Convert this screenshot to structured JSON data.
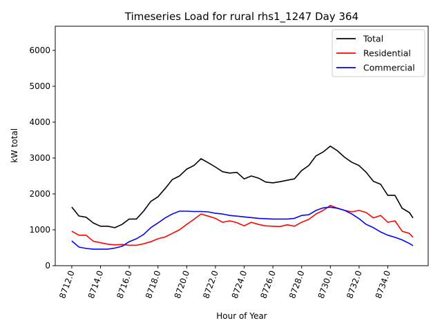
{
  "chart_data": {
    "type": "line",
    "title": "Timeseries Load for rural rhs1_1247  Day 364",
    "xlabel": "Hour of Year",
    "ylabel": "kW total",
    "xlim": [
      8710.85,
      8736.81
    ],
    "ylim": [
      0,
      6673
    ],
    "xticks": [
      8712,
      8714,
      8716,
      8718,
      8720,
      8722,
      8724,
      8726,
      8728,
      8730,
      8732,
      8734
    ],
    "xtick_labels": [
      "8712.0",
      "8714.0",
      "8716.0",
      "8718.0",
      "8720.0",
      "8722.0",
      "8724.0",
      "8726.0",
      "8728.0",
      "8730.0",
      "8732.0",
      "8734.0"
    ],
    "yticks": [
      0,
      1000,
      2000,
      3000,
      4000,
      5000,
      6000
    ],
    "ytick_labels": [
      "0",
      "1000",
      "2000",
      "3000",
      "4000",
      "5000",
      "6000"
    ],
    "grid": false,
    "legend_position": "top-right",
    "x": [
      8712,
      8712.5,
      8713,
      8713.5,
      8714,
      8714.5,
      8715,
      8715.5,
      8716,
      8716.5,
      8717,
      8717.5,
      8718,
      8718.5,
      8719,
      8719.5,
      8720,
      8720.5,
      8721,
      8721.5,
      8722,
      8722.5,
      8723,
      8723.5,
      8724,
      8724.5,
      8725,
      8725.5,
      8726,
      8726.5,
      8727,
      8727.5,
      8728,
      8728.5,
      8729,
      8729.5,
      8730,
      8730.5,
      8731,
      8731.5,
      8732,
      8732.5,
      8733,
      8733.5,
      8734,
      8734.5,
      8735,
      8735.5,
      8735.75
    ],
    "series": [
      {
        "name": "Total",
        "color": "#000000",
        "values": [
          1635,
          1385,
          1350,
          1190,
          1100,
          1100,
          1060,
          1150,
          1300,
          1300,
          1520,
          1790,
          1920,
          2150,
          2400,
          2500,
          2690,
          2790,
          2980,
          2870,
          2750,
          2620,
          2580,
          2600,
          2420,
          2500,
          2440,
          2330,
          2310,
          2340,
          2380,
          2420,
          2650,
          2790,
          3060,
          3170,
          3330,
          3200,
          3020,
          2880,
          2790,
          2600,
          2350,
          2270,
          1960,
          1960,
          1600,
          1480,
          1330
        ]
      },
      {
        "name": "Residential",
        "color": "#ff0000",
        "values": [
          960,
          850,
          850,
          680,
          640,
          600,
          580,
          590,
          570,
          570,
          610,
          670,
          750,
          800,
          900,
          1000,
          1150,
          1290,
          1440,
          1380,
          1320,
          1210,
          1250,
          1200,
          1110,
          1210,
          1150,
          1110,
          1100,
          1090,
          1140,
          1100,
          1210,
          1290,
          1440,
          1540,
          1680,
          1600,
          1540,
          1500,
          1540,
          1480,
          1330,
          1400,
          1210,
          1250,
          960,
          900,
          790
        ]
      },
      {
        "name": "Commercial",
        "color": "#0000ff",
        "values": [
          690,
          520,
          480,
          460,
          460,
          460,
          490,
          540,
          670,
          750,
          870,
          1060,
          1190,
          1330,
          1440,
          1520,
          1520,
          1510,
          1510,
          1500,
          1460,
          1440,
          1400,
          1380,
          1360,
          1340,
          1320,
          1310,
          1300,
          1300,
          1300,
          1320,
          1400,
          1420,
          1540,
          1610,
          1630,
          1600,
          1540,
          1440,
          1310,
          1150,
          1060,
          940,
          850,
          790,
          720,
          620,
          560
        ]
      }
    ]
  }
}
